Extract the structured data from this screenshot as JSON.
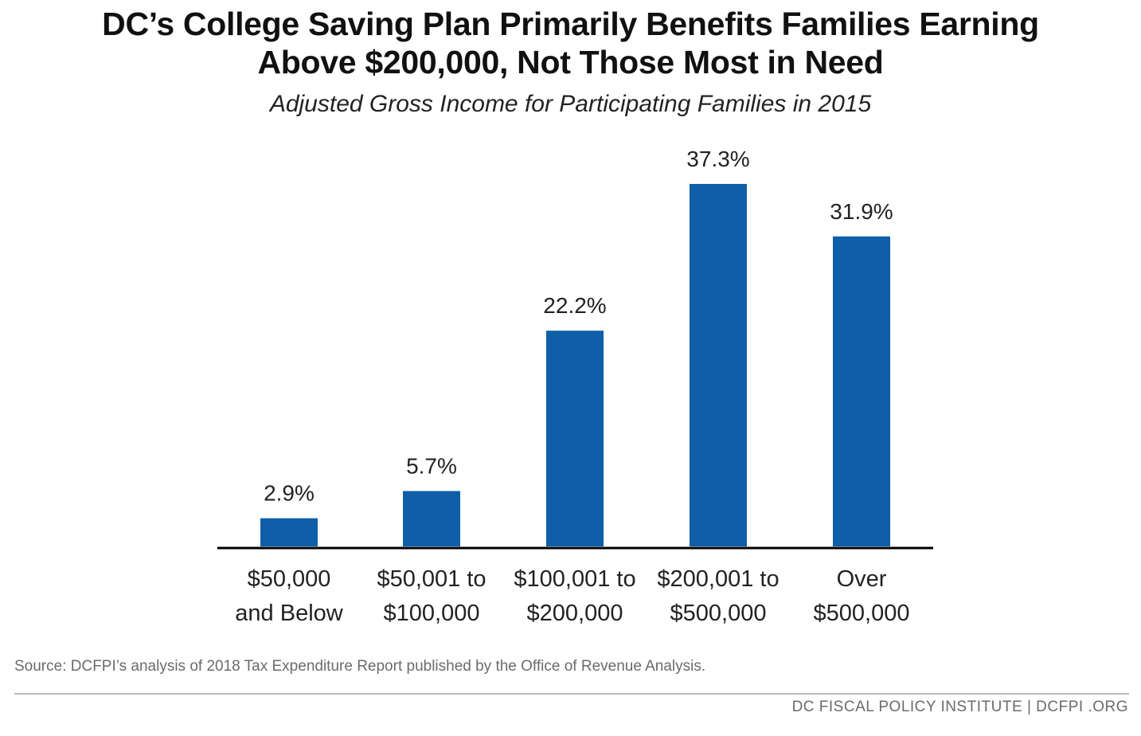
{
  "header": {
    "title_line1": "DC’s College Saving Plan Primarily Benefits Families Earning",
    "title_line2": "Above $200,000, Not Those Most in Need",
    "subtitle": "Adjusted Gross Income for Participating Families in 2015"
  },
  "chart_data": {
    "type": "bar",
    "title": "DC’s College Saving Plan Primarily Benefits Families Earning Above $200,000, Not Those Most in Need",
    "subtitle": "Adjusted Gross Income for Participating Families in 2015",
    "categories": [
      [
        "$50,000",
        "and Below"
      ],
      [
        "$50,001 to",
        "$100,000"
      ],
      [
        "$100,001 to",
        "$200,000"
      ],
      [
        "$200,001 to",
        "$500,000"
      ],
      [
        "Over",
        "$500,000"
      ]
    ],
    "values": [
      2.9,
      5.7,
      22.2,
      37.3,
      31.9
    ],
    "data_labels": [
      "2.9%",
      "5.7%",
      "22.2%",
      "37.3%",
      "31.9%"
    ],
    "xlabel": "",
    "ylabel": "",
    "ylim": [
      0,
      40
    ],
    "grid": false,
    "legend": "none",
    "bar_color": "#0f5ea8",
    "axis_color": "#000000"
  },
  "footer": {
    "source": "Source: DCFPI’s analysis of 2018 Tax Expenditure Report published by the Office of Revenue Analysis.",
    "organization": "DC FISCAL POLICY INSTITUTE | DCFPI .ORG"
  }
}
